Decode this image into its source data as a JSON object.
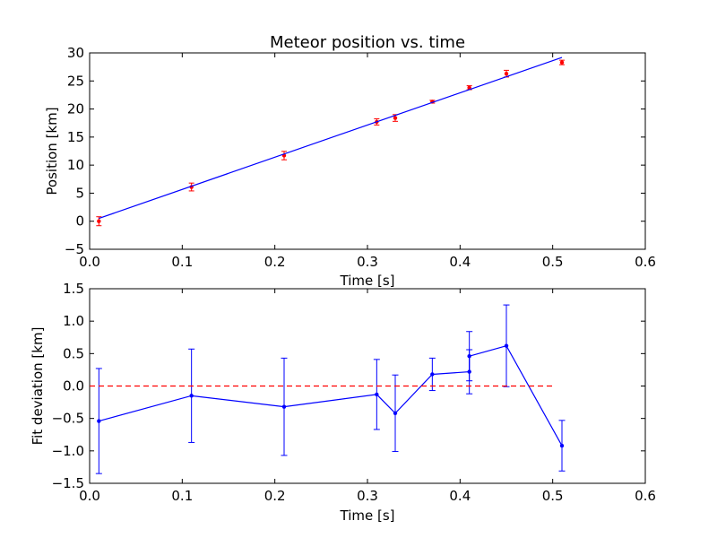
{
  "chart_data": [
    {
      "type": "scatter",
      "title": "Meteor position vs. time",
      "xlabel": "Time [s]",
      "ylabel": "Position [km]",
      "xlim": [
        0.0,
        0.6
      ],
      "ylim": [
        -5,
        30
      ],
      "xticks": [
        "0.0",
        "0.1",
        "0.2",
        "0.3",
        "0.4",
        "0.5",
        "0.6"
      ],
      "yticks": [
        "−5",
        "0",
        "5",
        "10",
        "15",
        "20",
        "25",
        "30"
      ],
      "grid": false,
      "series": [
        {
          "kind": "points-with-errorbars",
          "color": "#ff0000",
          "x": [
            0.01,
            0.11,
            0.21,
            0.31,
            0.33,
            0.37,
            0.41,
            0.45,
            0.51
          ],
          "y": [
            0.0,
            6.1,
            11.7,
            17.7,
            18.4,
            21.3,
            23.8,
            26.3,
            28.3
          ],
          "yerr": [
            0.8,
            0.7,
            0.75,
            0.55,
            0.6,
            0.25,
            0.35,
            0.6,
            0.4
          ]
        },
        {
          "kind": "fit-line",
          "color": "#0000ff",
          "x": [
            0.01,
            0.51
          ],
          "y": [
            0.5,
            29.2
          ]
        }
      ]
    },
    {
      "type": "line",
      "xlabel": "Time [s]",
      "ylabel": "Fit deviation [km]",
      "xlim": [
        0.0,
        0.6
      ],
      "ylim": [
        -1.5,
        1.5
      ],
      "xticks": [
        "0.0",
        "0.1",
        "0.2",
        "0.3",
        "0.4",
        "0.5",
        "0.6"
      ],
      "yticks": [
        "−1.5",
        "−1.0",
        "−0.5",
        "0.0",
        "0.5",
        "1.0",
        "1.5"
      ],
      "grid": false,
      "series": [
        {
          "kind": "line-with-errorbars",
          "color": "#0000ff",
          "x": [
            0.01,
            0.11,
            0.21,
            0.31,
            0.33,
            0.37,
            0.41,
            0.41,
            0.45,
            0.51
          ],
          "y": [
            -0.54,
            -0.15,
            -0.32,
            -0.13,
            -0.42,
            0.18,
            0.22,
            0.46,
            0.62,
            -0.92
          ],
          "yerr": [
            0.81,
            0.72,
            0.75,
            0.54,
            0.59,
            0.25,
            0.34,
            0.38,
            0.63,
            0.39
          ]
        },
        {
          "kind": "reference-dashed",
          "color": "#ff0000",
          "x": [
            0.0,
            0.5
          ],
          "y": [
            0.0,
            0.0
          ]
        }
      ]
    }
  ]
}
